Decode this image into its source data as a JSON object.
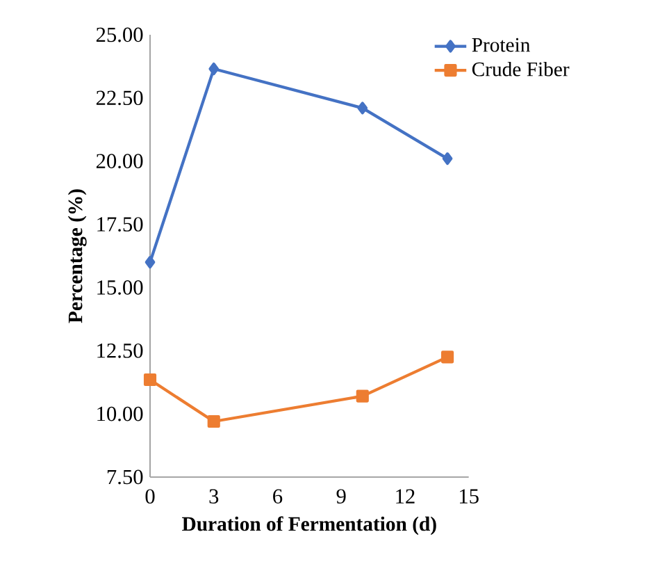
{
  "chart_data": {
    "type": "line",
    "xlabel": "Duration of Fermentation (d)",
    "ylabel": "Percentage (%)",
    "x": [
      0,
      3,
      10,
      14
    ],
    "series": [
      {
        "name": "Protein",
        "color": "#4472c4",
        "marker": "diamond",
        "values": [
          16.0,
          23.65,
          22.1,
          20.1
        ]
      },
      {
        "name": "Crude Fiber",
        "color": "#ed7d31",
        "marker": "square",
        "values": [
          11.35,
          9.7,
          10.7,
          12.25
        ]
      }
    ],
    "xlim": [
      0,
      15
    ],
    "xticks": [
      0,
      3,
      6,
      9,
      12,
      15
    ],
    "ylim": [
      7.5,
      25
    ],
    "yticks": [
      {
        "value": 7.5,
        "label": "7.50"
      },
      {
        "value": 10,
        "label": "10.00"
      },
      {
        "value": 12.5,
        "label": "12.50"
      },
      {
        "value": 15,
        "label": "15.00"
      },
      {
        "value": 17.5,
        "label": "17.50"
      },
      {
        "value": 20,
        "label": "20.00"
      },
      {
        "value": 22.5,
        "label": "22.50"
      },
      {
        "value": 25,
        "label": "25.00"
      }
    ],
    "grid": false,
    "legend": "top right",
    "line_style": "solid"
  }
}
